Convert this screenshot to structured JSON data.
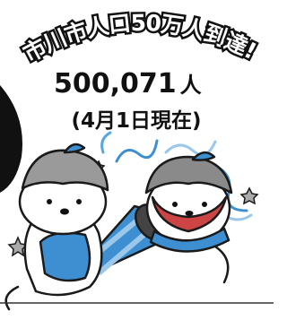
{
  "banner": {
    "title": "市川市人口50万人到達!",
    "population_number": "500,071",
    "population_unit": "人",
    "date_note": "(4月1日現在)"
  }
}
